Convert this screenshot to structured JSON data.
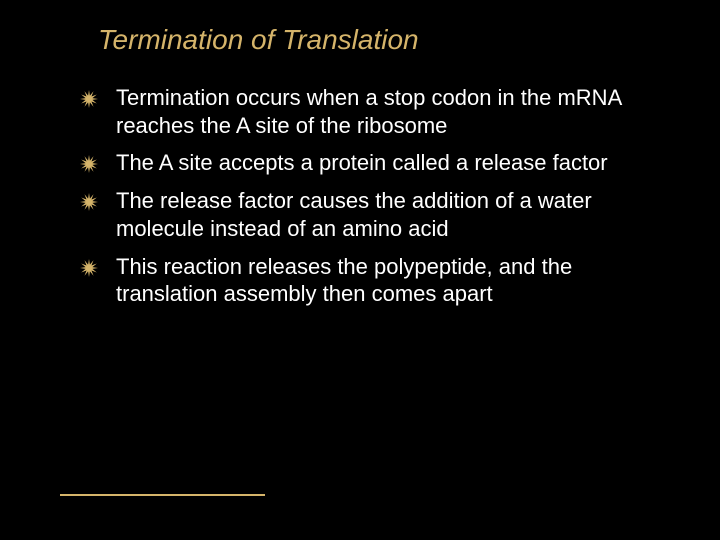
{
  "slide": {
    "title": "Termination of Translation",
    "title_color": "#d5b46a",
    "text_color": "#ffffff",
    "background_color": "#000000",
    "bullet_color": "#d5b46a",
    "divider_color": "#d5b46a",
    "title_fontsize": 28,
    "body_fontsize": 22,
    "bullets": [
      "Termination occurs when a stop codon in the mRNA reaches the A site of the ribosome",
      "The A site accepts a protein called a release factor",
      "The release factor causes the addition of a water molecule instead of an amino acid",
      "This reaction releases the polypeptide, and the translation assembly then comes apart"
    ]
  }
}
